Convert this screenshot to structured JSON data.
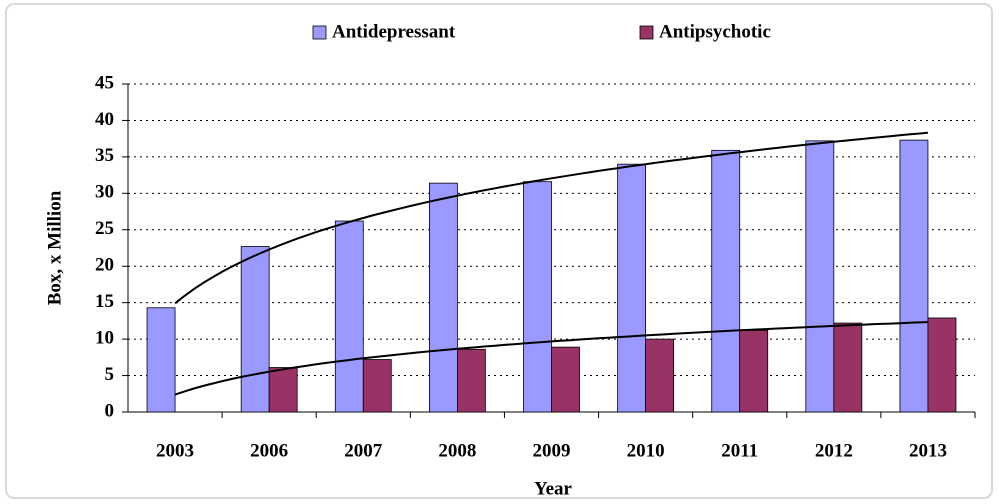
{
  "chart_data": {
    "type": "bar",
    "categories": [
      "2003",
      "2006",
      "2007",
      "2008",
      "2009",
      "2010",
      "2011",
      "2012",
      "2013"
    ],
    "series": [
      {
        "name": "Antidepressant",
        "color": "#9999ff",
        "values": [
          14.3,
          22.7,
          26.2,
          31.4,
          31.6,
          34.0,
          35.9,
          37.2,
          37.3
        ]
      },
      {
        "name": "Antipsychotic",
        "color": "#993366",
        "values": [
          null,
          6.1,
          7.2,
          8.6,
          8.9,
          10.0,
          11.2,
          12.2,
          12.9
        ]
      }
    ],
    "x_label": "Year",
    "y_label": "Box, x Million",
    "ylim": [
      0,
      45
    ],
    "yticks": [
      0,
      5,
      10,
      15,
      20,
      25,
      30,
      35,
      40,
      45
    ],
    "grid": true,
    "trendline": "logarithmic",
    "legend": "top"
  }
}
